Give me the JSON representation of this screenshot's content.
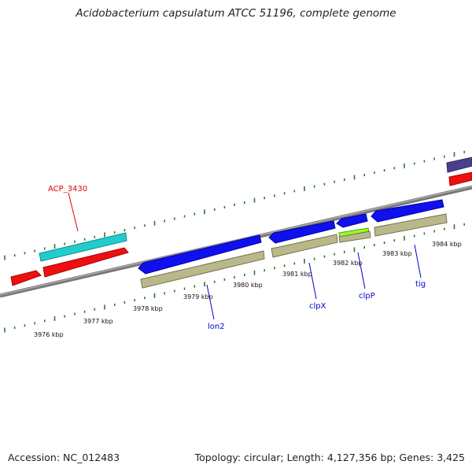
{
  "title": "Acidobacterium capsulatum ATCC 51196, complete genome",
  "footer": {
    "accession": "Accession: NC_012483",
    "topology": "Topology: circular; Length: 4,127,356 bp; Genes: 3,425"
  },
  "colors": {
    "forward_cds": "#1010ee",
    "reverse_cds": "#ee1010",
    "cog_tan": "#b8b88a",
    "cyan": "#22cccc",
    "lime": "#99ff22",
    "purple": "#4a3f8c",
    "backbone": "#888888",
    "tick": "#2a7a2a",
    "label_blue": "#0000cc",
    "label_red": "#dd0000"
  },
  "tick_labels": [
    "3976 kbp",
    "3977 kbp",
    "3978 kbp",
    "3979 kbp",
    "3980 kbp",
    "3981 kbp",
    "3982 kbp",
    "3983 kbp",
    "3984 kbp"
  ],
  "gene_labels": [
    {
      "name": "ACP_3430",
      "color": "label_red"
    },
    {
      "name": "lon2",
      "color": "label_blue"
    },
    {
      "name": "clpX",
      "color": "label_blue"
    },
    {
      "name": "clpP",
      "color": "label_blue"
    },
    {
      "name": "tig",
      "color": "label_blue"
    }
  ]
}
